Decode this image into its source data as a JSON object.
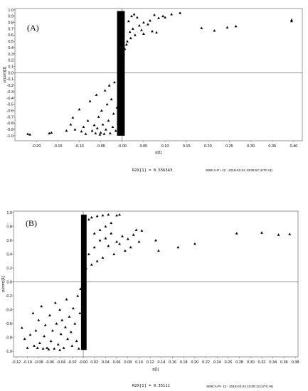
{
  "chart_data": [
    {
      "type": "scatter",
      "panel_label": "(A)",
      "xlabel": "p[1]",
      "ylabel": "p(corr)[1]",
      "xlim": [
        -0.25,
        0.42
      ],
      "ylim": [
        -1.08,
        1.02
      ],
      "xticks": [
        "-0.20",
        "-0.15",
        "-0.10",
        "-0.05",
        "-0.00",
        "0.05",
        "0.10",
        "0.15",
        "0.20",
        "0.25",
        "0.30",
        "0.35",
        "0.40"
      ],
      "xtick_values": [
        -0.2,
        -0.15,
        -0.1,
        -0.05,
        0.0,
        0.05,
        0.1,
        0.15,
        0.2,
        0.25,
        0.3,
        0.35,
        0.4
      ],
      "yticks": [
        "1.0",
        "0.9",
        "0.8",
        "0.7",
        "0.6",
        "0.5",
        "0.4",
        "0.3",
        "0.2",
        "0.1",
        "0.0",
        "-0.1",
        "-0.2",
        "-0.3",
        "-0.4",
        "-0.5",
        "-0.6",
        "-0.7",
        "-0.8",
        "-0.9",
        "-1.0"
      ],
      "ytick_values": [
        1.0,
        0.9,
        0.8,
        0.7,
        0.6,
        0.5,
        0.4,
        0.3,
        0.2,
        0.1,
        0.0,
        -0.1,
        -0.2,
        -0.3,
        -0.4,
        -0.5,
        -0.6,
        -0.7,
        -0.8,
        -0.9,
        -1.0
      ],
      "r2x": "R2X[1] = 0.556343",
      "footer": "SIMCA-P+ 12 - 2016-02-24 13:06:57 (UTC+8)",
      "points": [
        [
          0.395,
          0.84
        ],
        [
          0.395,
          0.82
        ],
        [
          0.265,
          0.74
        ],
        [
          0.245,
          0.72
        ],
        [
          0.215,
          0.67
        ],
        [
          0.185,
          0.71
        ],
        [
          0.135,
          0.95
        ],
        [
          0.115,
          0.93
        ],
        [
          0.095,
          0.9
        ],
        [
          0.085,
          0.87
        ],
        [
          0.075,
          0.92
        ],
        [
          0.065,
          0.83
        ],
        [
          0.06,
          0.77
        ],
        [
          0.05,
          0.8
        ],
        [
          0.045,
          0.68
        ],
        [
          0.04,
          0.75
        ],
        [
          0.03,
          0.6
        ],
        [
          0.025,
          0.7
        ],
        [
          0.02,
          0.55
        ],
        [
          0.015,
          0.82
        ],
        [
          0.012,
          0.5
        ],
        [
          0.05,
          0.62
        ],
        [
          0.07,
          0.66
        ],
        [
          0.1,
          0.88
        ],
        [
          0.08,
          0.64
        ],
        [
          0.035,
          0.88
        ],
        [
          0.028,
          0.93
        ],
        [
          0.022,
          0.9
        ],
        [
          0.018,
          0.65
        ],
        [
          0.01,
          0.45
        ],
        [
          0.006,
          0.38
        ],
        [
          0.004,
          0.3
        ],
        [
          0.003,
          0.2
        ],
        [
          -0.22,
          -0.97
        ],
        [
          -0.215,
          -0.98
        ],
        [
          -0.17,
          -0.96
        ],
        [
          -0.165,
          -0.95
        ],
        [
          -0.13,
          -0.92
        ],
        [
          -0.12,
          -0.82
        ],
        [
          -0.115,
          -0.71
        ],
        [
          -0.11,
          -0.9
        ],
        [
          -0.1,
          -0.58
        ],
        [
          -0.095,
          -0.93
        ],
        [
          -0.09,
          -0.86
        ],
        [
          -0.08,
          -0.76
        ],
        [
          -0.075,
          -0.45
        ],
        [
          -0.07,
          -0.92
        ],
        [
          -0.065,
          -0.83
        ],
        [
          -0.06,
          -0.35
        ],
        [
          -0.058,
          -0.88
        ],
        [
          -0.055,
          -0.7
        ],
        [
          -0.05,
          -0.95
        ],
        [
          -0.048,
          -0.6
        ],
        [
          -0.045,
          -0.82
        ],
        [
          -0.04,
          -0.28
        ],
        [
          -0.038,
          -0.9
        ],
        [
          -0.035,
          -0.5
        ],
        [
          -0.032,
          -0.76
        ],
        [
          -0.03,
          -0.2
        ],
        [
          -0.028,
          -0.96
        ],
        [
          -0.025,
          -0.42
        ],
        [
          -0.022,
          -0.86
        ],
        [
          -0.02,
          -0.65
        ],
        [
          -0.018,
          -0.15
        ],
        [
          -0.015,
          -0.92
        ],
        [
          -0.012,
          -0.55
        ],
        [
          -0.01,
          -0.8
        ],
        [
          -0.008,
          -0.3
        ],
        [
          -0.006,
          -0.97
        ],
        [
          -0.004,
          -0.12
        ],
        [
          -0.052,
          -0.98
        ],
        [
          -0.062,
          -0.96
        ],
        [
          -0.042,
          -0.97
        ],
        [
          -0.085,
          -0.97
        ]
      ],
      "dense_band": {
        "x_from": -0.012,
        "x_to": 0.006,
        "y_top": 0.98,
        "y_bottom": -1.0
      }
    },
    {
      "type": "scatter",
      "panel_label": "(B)",
      "xlabel": "p[1]",
      "ylabel": "p(corr)[1]",
      "xlim": [
        -0.125,
        0.385
      ],
      "ylim": [
        -1.08,
        1.02
      ],
      "xticks": [
        "-0.12",
        "-0.10",
        "-0.08",
        "-0.06",
        "-0.04",
        "-0.02",
        "-0.00",
        "0.02",
        "0.04",
        "0.06",
        "0.08",
        "0.10",
        "0.12",
        "0.14",
        "0.16",
        "0.18",
        "0.20",
        "0.22",
        "0.24",
        "0.26",
        "0.28",
        "0.30",
        "0.32",
        "0.34",
        "0.36",
        "0.38"
      ],
      "xtick_values": [
        -0.12,
        -0.1,
        -0.08,
        -0.06,
        -0.04,
        -0.02,
        0.0,
        0.02,
        0.04,
        0.06,
        0.08,
        0.1,
        0.12,
        0.14,
        0.16,
        0.18,
        0.2,
        0.22,
        0.24,
        0.26,
        0.28,
        0.3,
        0.32,
        0.34,
        0.36,
        0.38
      ],
      "yticks": [
        "1.0",
        "0.8",
        "0.6",
        "0.4",
        "0.2",
        "0.0",
        "-0.2",
        "-0.4",
        "-0.6",
        "-0.8",
        "-1.0"
      ],
      "ytick_values": [
        1.0,
        0.8,
        0.6,
        0.4,
        0.2,
        0.0,
        -0.2,
        -0.4,
        -0.6,
        -0.8,
        -1.0
      ],
      "r2x": "R2X[1] = 0.35111",
      "footer": "SIMCA-P+ 12 - 2016-02-24 13:05:12 (UTC+8)",
      "points": [
        [
          0.37,
          0.69
        ],
        [
          0.35,
          0.68
        ],
        [
          0.32,
          0.71
        ],
        [
          0.275,
          0.7
        ],
        [
          0.2,
          0.55
        ],
        [
          0.17,
          0.5
        ],
        [
          0.135,
          0.45
        ],
        [
          0.13,
          0.6
        ],
        [
          0.105,
          0.74
        ],
        [
          0.1,
          0.58
        ],
        [
          0.095,
          0.75
        ],
        [
          0.09,
          0.68
        ],
        [
          0.085,
          0.5
        ],
        [
          0.08,
          0.62
        ],
        [
          0.075,
          0.45
        ],
        [
          0.07,
          0.66
        ],
        [
          0.065,
          0.55
        ],
        [
          0.06,
          0.58
        ],
        [
          0.055,
          0.4
        ],
        [
          0.05,
          0.7
        ],
        [
          0.045,
          0.52
        ],
        [
          0.04,
          0.63
        ],
        [
          0.035,
          0.35
        ],
        [
          0.03,
          0.6
        ],
        [
          0.025,
          0.3
        ],
        [
          0.02,
          0.5
        ],
        [
          0.015,
          0.25
        ],
        [
          0.01,
          0.4
        ],
        [
          0.065,
          0.97
        ],
        [
          0.06,
          0.96
        ],
        [
          0.045,
          0.97
        ],
        [
          0.035,
          0.96
        ],
        [
          0.025,
          0.95
        ],
        [
          0.015,
          0.93
        ],
        [
          0.01,
          0.9
        ],
        [
          0.05,
          0.85
        ],
        [
          0.04,
          0.8
        ],
        [
          0.03,
          0.75
        ],
        [
          0.02,
          0.7
        ],
        [
          0.005,
          0.2
        ],
        [
          -0.11,
          -0.66
        ],
        [
          -0.105,
          -0.82
        ],
        [
          -0.1,
          -0.95
        ],
        [
          -0.095,
          -0.76
        ],
        [
          -0.09,
          -0.45
        ],
        [
          -0.088,
          -0.92
        ],
        [
          -0.085,
          -0.7
        ],
        [
          -0.08,
          -0.55
        ],
        [
          -0.078,
          -0.88
        ],
        [
          -0.075,
          -0.35
        ],
        [
          -0.07,
          -0.78
        ],
        [
          -0.068,
          -0.62
        ],
        [
          -0.065,
          -0.95
        ],
        [
          -0.06,
          -0.48
        ],
        [
          -0.058,
          -0.85
        ],
        [
          -0.055,
          -0.7
        ],
        [
          -0.05,
          -0.3
        ],
        [
          -0.048,
          -0.6
        ],
        [
          -0.045,
          -0.9
        ],
        [
          -0.042,
          -0.4
        ],
        [
          -0.04,
          -0.75
        ],
        [
          -0.038,
          -0.55
        ],
        [
          -0.035,
          -0.95
        ],
        [
          -0.032,
          -0.65
        ],
        [
          -0.03,
          -0.25
        ],
        [
          -0.028,
          -0.82
        ],
        [
          -0.025,
          -0.5
        ],
        [
          -0.022,
          -0.72
        ],
        [
          -0.02,
          -0.92
        ],
        [
          -0.018,
          -0.38
        ],
        [
          -0.015,
          -0.6
        ],
        [
          -0.012,
          -0.85
        ],
        [
          -0.01,
          -0.2
        ],
        [
          -0.008,
          -0.96
        ],
        [
          -0.006,
          -0.45
        ],
        [
          -0.005,
          -0.1
        ],
        [
          -0.062,
          -0.97
        ],
        [
          -0.052,
          -0.96
        ],
        [
          -0.042,
          -0.98
        ],
        [
          -0.072,
          -0.96
        ],
        [
          -0.082,
          -0.95
        ]
      ],
      "dense_band": {
        "x_from": -0.004,
        "x_to": 0.006,
        "y_top": 0.97,
        "y_bottom": -0.98
      }
    }
  ]
}
